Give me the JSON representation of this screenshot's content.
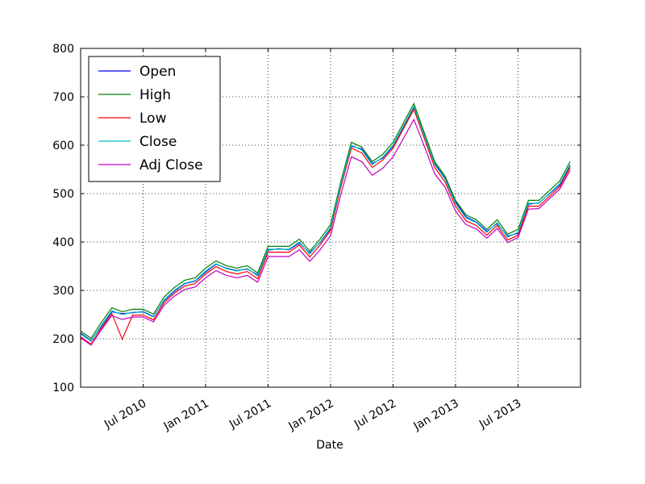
{
  "chart_data": {
    "type": "line",
    "x_label": "Date",
    "x": [
      "2010-01",
      "2010-02",
      "2010-03",
      "2010-04",
      "2010-05",
      "2010-06",
      "2010-07",
      "2010-08",
      "2010-09",
      "2010-10",
      "2010-11",
      "2010-12",
      "2011-01",
      "2011-02",
      "2011-03",
      "2011-04",
      "2011-05",
      "2011-06",
      "2011-07",
      "2011-08",
      "2011-09",
      "2011-10",
      "2011-11",
      "2011-12",
      "2012-01",
      "2012-02",
      "2012-03",
      "2012-04",
      "2012-05",
      "2012-06",
      "2012-07",
      "2012-08",
      "2012-09",
      "2012-10",
      "2012-11",
      "2012-12",
      "2013-01",
      "2013-02",
      "2013-03",
      "2013-04",
      "2013-05",
      "2013-06",
      "2013-07",
      "2013-08",
      "2013-09",
      "2013-10",
      "2013-11",
      "2013-12"
    ],
    "series": [
      {
        "name": "Open",
        "color": "#0000ff",
        "values": [
          212,
          196,
          226,
          256,
          252,
          254,
          256,
          246,
          278,
          298,
          314,
          319,
          338,
          354,
          346,
          341,
          344,
          332,
          383,
          386,
          384,
          398,
          377,
          399,
          428,
          518,
          598,
          592,
          562,
          573,
          598,
          638,
          678,
          623,
          562,
          532,
          483,
          452,
          441,
          422,
          438,
          412,
          418,
          478,
          481,
          499,
          518,
          558
        ]
      },
      {
        "name": "High",
        "color": "#008000",
        "values": [
          216,
          201,
          234,
          264,
          256,
          261,
          261,
          251,
          286,
          306,
          321,
          326,
          346,
          361,
          351,
          346,
          351,
          336,
          391,
          391,
          391,
          406,
          381,
          406,
          436,
          526,
          606,
          596,
          566,
          581,
          606,
          646,
          686,
          626,
          566,
          536,
          486,
          456,
          446,
          426,
          446,
          416,
          426,
          486,
          486,
          506,
          526,
          566
        ]
      },
      {
        "name": "Low",
        "color": "#ff0000",
        "values": [
          204,
          189,
          222,
          252,
          199,
          249,
          249,
          239,
          274,
          294,
          309,
          314,
          334,
          349,
          339,
          334,
          339,
          324,
          379,
          379,
          379,
          394,
          369,
          394,
          424,
          514,
          594,
          584,
          554,
          569,
          594,
          634,
          674,
          614,
          554,
          524,
          474,
          444,
          434,
          414,
          434,
          404,
          414,
          474,
          474,
          494,
          514,
          554
        ]
      },
      {
        "name": "Close",
        "color": "#00bfbf",
        "values": [
          210,
          195,
          228,
          258,
          250,
          255,
          255,
          245,
          280,
          300,
          315,
          320,
          340,
          355,
          345,
          340,
          345,
          330,
          385,
          385,
          385,
          400,
          375,
          400,
          430,
          520,
          600,
          590,
          560,
          575,
          600,
          640,
          680,
          620,
          560,
          530,
          480,
          450,
          440,
          420,
          440,
          410,
          420,
          480,
          480,
          500,
          520,
          560
        ]
      },
      {
        "name": "Adj Close",
        "color": "#bf00bf",
        "values": [
          202,
          187,
          219,
          248,
          240,
          245,
          245,
          235,
          269,
          288,
          302,
          307,
          326,
          341,
          331,
          326,
          331,
          317,
          370,
          370,
          370,
          384,
          360,
          384,
          413,
          499,
          576,
          566,
          538,
          552,
          576,
          614,
          653,
          598,
          541,
          513,
          464,
          436,
          427,
          408,
          428,
          399,
          409,
          468,
          469,
          489,
          509,
          548
        ]
      }
    ],
    "xlim": [
      "2010-01",
      "2014-01"
    ],
    "xticks": [
      {
        "value": "2010-07",
        "label": "Jul 2010"
      },
      {
        "value": "2011-01",
        "label": "Jan 2011"
      },
      {
        "value": "2011-07",
        "label": "Jul 2011"
      },
      {
        "value": "2012-01",
        "label": "Jan 2012"
      },
      {
        "value": "2012-07",
        "label": "Jul 2012"
      },
      {
        "value": "2013-01",
        "label": "Jan 2013"
      },
      {
        "value": "2013-07",
        "label": "Jul 2013"
      }
    ],
    "ylim": [
      100,
      800
    ],
    "yticks": [
      100,
      200,
      300,
      400,
      500,
      600,
      700,
      800
    ],
    "grid": true,
    "legend": "upper left"
  }
}
